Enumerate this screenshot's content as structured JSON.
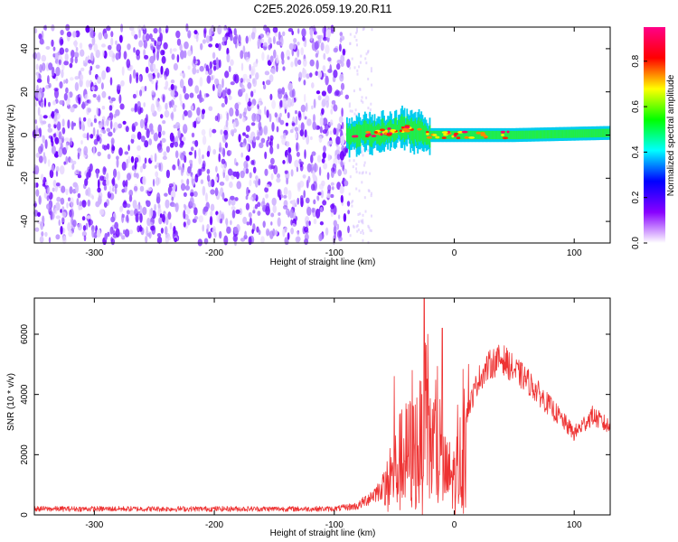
{
  "chart_data": [
    {
      "type": "heatmap",
      "title": "C2E5.2026.059.19.20.R11",
      "xlabel": "Height of straight line (km)",
      "ylabel": "Frequency (Hz)",
      "xlim": [
        -350,
        130
      ],
      "ylim": [
        -50,
        50
      ],
      "xticks": [
        -300,
        -200,
        -100,
        0,
        100
      ],
      "yticks": [
        -40,
        -20,
        0,
        20,
        40
      ],
      "noise_region_x": [
        -350,
        -88
      ],
      "signal_band": [
        {
          "x": -90,
          "f": 0
        },
        {
          "x": -60,
          "f": 1
        },
        {
          "x": -40,
          "f": 3
        },
        {
          "x": -20,
          "f": 0
        },
        {
          "x": 0,
          "f": 0
        },
        {
          "x": 50,
          "f": 0
        },
        {
          "x": 130,
          "f": 1
        }
      ],
      "colorbar": {
        "label": "Normalized spectral amplitude",
        "range": [
          0,
          0.95
        ],
        "ticks": [
          "0.0",
          "0.2",
          "0.4",
          "0.6",
          "0.8"
        ],
        "ticks_values": [
          0,
          0.2,
          0.4,
          0.6,
          0.8
        ],
        "colors": [
          "#ffffff",
          "#8800ff",
          "#0000ff",
          "#00ffff",
          "#00ff00",
          "#ffff00",
          "#ff0000",
          "#ff0088"
        ]
      }
    },
    {
      "type": "line",
      "xlabel": "Height of straight line (km)",
      "ylabel": "SNR (10 * v/v)",
      "xlim": [
        -350,
        130
      ],
      "ylim": [
        0,
        7200
      ],
      "xticks": [
        -300,
        -200,
        -100,
        0,
        100
      ],
      "yticks": [
        0,
        2000,
        4000,
        6000
      ],
      "color": "#ee3333",
      "series": [
        {
          "name": "SNR",
          "envelope": [
            {
              "x": -350,
              "y": 200
            },
            {
              "x": -100,
              "y": 200
            },
            {
              "x": -80,
              "y": 300
            },
            {
              "x": -60,
              "y": 900
            },
            {
              "x": -45,
              "y": 2500
            },
            {
              "x": -30,
              "y": 3200
            },
            {
              "x": -20,
              "y": 3500
            },
            {
              "x": -10,
              "y": 2000
            },
            {
              "x": 0,
              "y": 1700
            },
            {
              "x": 10,
              "y": 3300
            },
            {
              "x": 20,
              "y": 4500
            },
            {
              "x": 30,
              "y": 5000
            },
            {
              "x": 40,
              "y": 5200
            },
            {
              "x": 50,
              "y": 4800
            },
            {
              "x": 60,
              "y": 4500
            },
            {
              "x": 80,
              "y": 3600
            },
            {
              "x": 100,
              "y": 2700
            },
            {
              "x": 115,
              "y": 3300
            },
            {
              "x": 130,
              "y": 2900
            }
          ],
          "spikes": [
            {
              "x": -50,
              "y": 4600
            },
            {
              "x": -35,
              "y": 4800
            },
            {
              "x": -25,
              "y": 7200
            },
            {
              "x": -22,
              "y": 6000
            },
            {
              "x": -10,
              "y": 6200
            },
            {
              "x": 12,
              "y": 5000
            }
          ]
        }
      ]
    }
  ]
}
